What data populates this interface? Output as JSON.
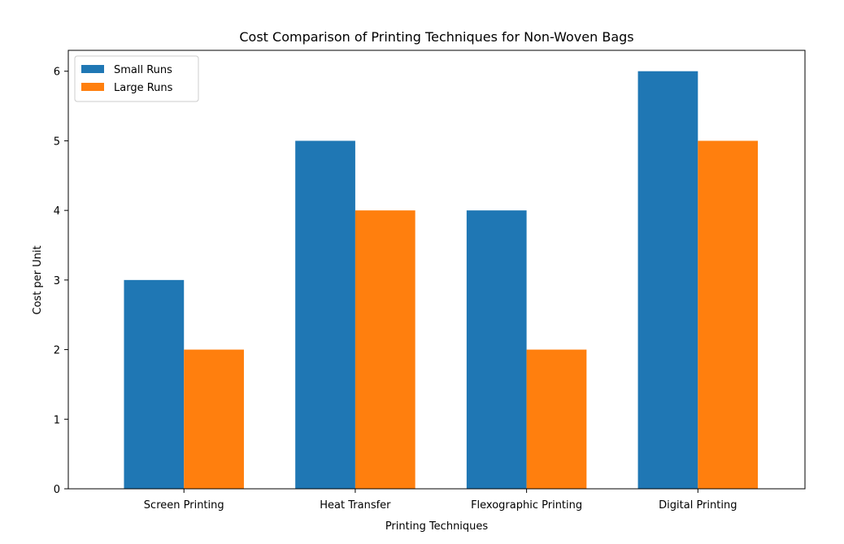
{
  "chart_data": {
    "type": "bar",
    "title": "Cost Comparison of Printing Techniques for Non-Woven Bags",
    "xlabel": "Printing Techniques",
    "ylabel": "Cost per Unit",
    "categories": [
      "Screen Printing",
      "Heat Transfer",
      "Flexographic Printing",
      "Digital Printing"
    ],
    "series": [
      {
        "name": "Small Runs",
        "values": [
          3,
          5,
          4,
          6
        ],
        "color": "#1f77b4"
      },
      {
        "name": "Large Runs",
        "values": [
          2,
          4,
          2,
          5
        ],
        "color": "#ff7f0e"
      }
    ],
    "ylim": [
      0,
      6.3
    ],
    "yticks": [
      0,
      1,
      2,
      3,
      4,
      5,
      6
    ],
    "grid": false,
    "legend_position": "top-left"
  }
}
